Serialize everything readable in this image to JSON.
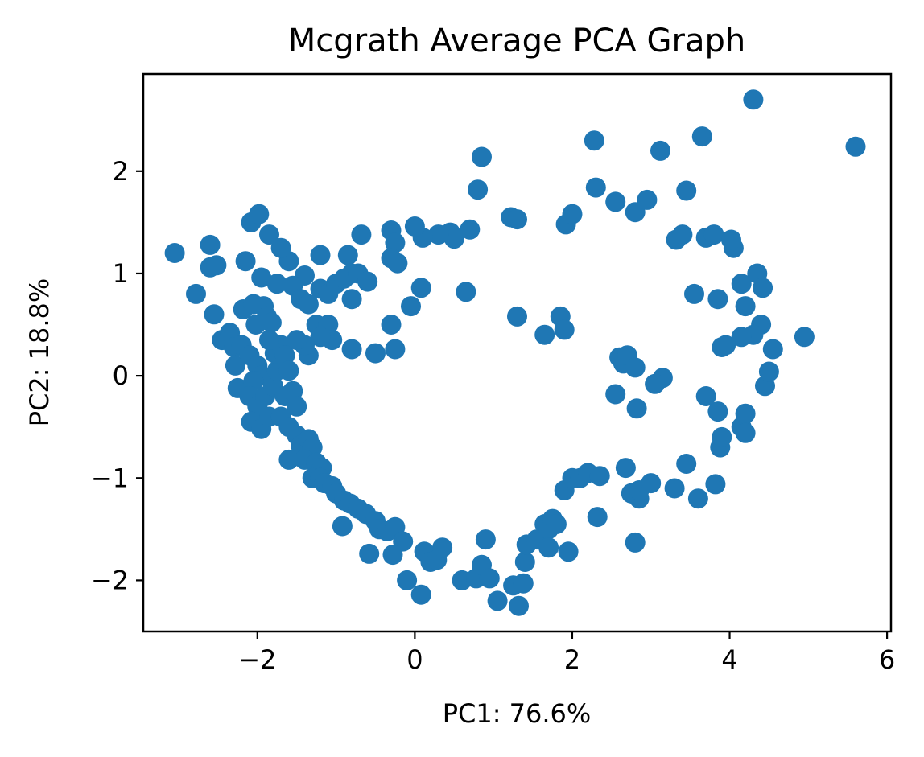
{
  "chart_data": {
    "type": "scatter",
    "title": "Mcgrath Average PCA Graph",
    "xlabel": "PC1: 76.6%",
    "ylabel": "PC2: 18.8%",
    "xlim": [
      -3.45,
      6.05
    ],
    "ylim": [
      -2.5,
      2.95
    ],
    "xticks": [
      -2,
      0,
      2,
      4,
      6
    ],
    "xtick_labels": [
      "−2",
      "0",
      "2",
      "4",
      "6"
    ],
    "yticks": [
      -2,
      -1,
      0,
      1,
      2
    ],
    "ytick_labels": [
      "−2",
      "−1",
      "0",
      "1",
      "2"
    ],
    "grid": false,
    "legend": "none",
    "marker_color": "#1f77b4",
    "points": [
      [
        -3.05,
        1.2
      ],
      [
        -2.78,
        0.8
      ],
      [
        -2.6,
        1.28
      ],
      [
        -2.6,
        1.06
      ],
      [
        -2.52,
        1.08
      ],
      [
        -2.55,
        0.6
      ],
      [
        -2.45,
        0.35
      ],
      [
        -2.35,
        0.42
      ],
      [
        -2.3,
        0.28
      ],
      [
        -2.2,
        0.3
      ],
      [
        -2.28,
        0.1
      ],
      [
        -2.25,
        -0.12
      ],
      [
        -2.18,
        0.65
      ],
      [
        -2.15,
        1.12
      ],
      [
        -2.08,
        1.5
      ],
      [
        -1.98,
        1.58
      ],
      [
        -1.95,
        0.96
      ],
      [
        -2.05,
        0.7
      ],
      [
        -1.92,
        0.68
      ],
      [
        -1.88,
        0.58
      ],
      [
        -2.02,
        0.5
      ],
      [
        -1.82,
        0.52
      ],
      [
        -2.1,
        0.2
      ],
      [
        -2.0,
        0.1
      ],
      [
        -1.95,
        0.0
      ],
      [
        -2.05,
        -0.05
      ],
      [
        -2.1,
        -0.2
      ],
      [
        -2.0,
        -0.3
      ],
      [
        -2.08,
        -0.45
      ],
      [
        -1.95,
        -0.52
      ],
      [
        -1.85,
        -0.4
      ],
      [
        -1.9,
        -0.2
      ],
      [
        -1.8,
        -0.1
      ],
      [
        -1.75,
        0.05
      ],
      [
        -1.78,
        0.22
      ],
      [
        -1.7,
        0.3
      ],
      [
        -1.85,
        0.35
      ],
      [
        -1.65,
        0.2
      ],
      [
        -1.6,
        0.05
      ],
      [
        -1.65,
        -0.2
      ],
      [
        -1.55,
        -0.15
      ],
      [
        -1.5,
        -0.3
      ],
      [
        -1.7,
        -0.4
      ],
      [
        -1.6,
        -0.5
      ],
      [
        -1.5,
        -0.58
      ],
      [
        -1.45,
        -0.68
      ],
      [
        -1.35,
        -0.62
      ],
      [
        -1.3,
        -0.7
      ],
      [
        -1.6,
        -0.82
      ],
      [
        -1.4,
        -0.82
      ],
      [
        -1.25,
        -0.85
      ],
      [
        -1.18,
        -0.9
      ],
      [
        -1.3,
        -1.0
      ],
      [
        -1.2,
        -1.0
      ],
      [
        -1.15,
        -1.05
      ],
      [
        -1.05,
        -1.08
      ],
      [
        -1.0,
        -1.15
      ],
      [
        -0.9,
        -1.22
      ],
      [
        -0.82,
        -1.25
      ],
      [
        -0.72,
        -1.3
      ],
      [
        -0.62,
        -1.35
      ],
      [
        -0.92,
        -1.47
      ],
      [
        -0.5,
        -1.42
      ],
      [
        -0.45,
        -1.5
      ],
      [
        -0.35,
        -1.52
      ],
      [
        -0.25,
        -1.48
      ],
      [
        -0.15,
        -1.62
      ],
      [
        -0.28,
        -1.75
      ],
      [
        -0.58,
        -1.74
      ],
      [
        -0.1,
        -2.0
      ],
      [
        0.08,
        -2.14
      ],
      [
        0.12,
        -1.72
      ],
      [
        0.2,
        -1.82
      ],
      [
        0.28,
        -1.8
      ],
      [
        0.35,
        -1.68
      ],
      [
        0.6,
        -2.0
      ],
      [
        0.78,
        -1.98
      ],
      [
        0.85,
        -1.85
      ],
      [
        0.9,
        -1.6
      ],
      [
        0.95,
        -1.98
      ],
      [
        1.05,
        -2.2
      ],
      [
        1.25,
        -2.05
      ],
      [
        1.32,
        -2.25
      ],
      [
        1.38,
        -2.03
      ],
      [
        1.4,
        -1.82
      ],
      [
        1.42,
        -1.65
      ],
      [
        1.55,
        -1.6
      ],
      [
        1.65,
        -1.45
      ],
      [
        1.7,
        -1.5
      ],
      [
        1.75,
        -1.4
      ],
      [
        1.8,
        -1.45
      ],
      [
        1.7,
        -1.68
      ],
      [
        1.95,
        -1.72
      ],
      [
        1.9,
        -1.12
      ],
      [
        2.0,
        -1.0
      ],
      [
        2.1,
        -1.0
      ],
      [
        2.2,
        -0.95
      ],
      [
        2.35,
        -0.98
      ],
      [
        2.32,
        -1.38
      ],
      [
        2.68,
        -0.9
      ],
      [
        2.75,
        -1.15
      ],
      [
        2.85,
        -1.2
      ],
      [
        2.85,
        -1.12
      ],
      [
        3.0,
        -1.05
      ],
      [
        2.8,
        -1.63
      ],
      [
        3.3,
        -1.1
      ],
      [
        3.45,
        -0.86
      ],
      [
        3.6,
        -1.2
      ],
      [
        3.82,
        -1.06
      ],
      [
        3.88,
        -0.7
      ],
      [
        3.9,
        -0.6
      ],
      [
        4.15,
        -0.5
      ],
      [
        4.2,
        -0.37
      ],
      [
        4.2,
        -0.56
      ],
      [
        4.45,
        -0.1
      ],
      [
        4.5,
        0.04
      ],
      [
        4.55,
        0.26
      ],
      [
        4.4,
        0.5
      ],
      [
        4.3,
        0.4
      ],
      [
        4.15,
        0.38
      ],
      [
        3.9,
        0.28
      ],
      [
        3.95,
        0.3
      ],
      [
        3.85,
        0.75
      ],
      [
        3.55,
        0.8
      ],
      [
        4.2,
        0.68
      ],
      [
        4.15,
        0.9
      ],
      [
        4.35,
        1.0
      ],
      [
        4.42,
        0.86
      ],
      [
        4.95,
        0.38
      ],
      [
        3.7,
        -0.2
      ],
      [
        3.85,
        -0.35
      ],
      [
        3.15,
        -0.02
      ],
      [
        3.05,
        -0.08
      ],
      [
        2.6,
        0.18
      ],
      [
        2.65,
        0.12
      ],
      [
        2.7,
        0.2
      ],
      [
        2.8,
        0.08
      ],
      [
        2.55,
        -0.18
      ],
      [
        2.82,
        -0.32
      ],
      [
        1.65,
        0.4
      ],
      [
        1.85,
        0.58
      ],
      [
        1.9,
        0.45
      ],
      [
        1.3,
        0.58
      ],
      [
        0.65,
        0.82
      ],
      [
        0.85,
        2.14
      ],
      [
        0.8,
        1.82
      ],
      [
        1.22,
        1.55
      ],
      [
        1.3,
        1.53
      ],
      [
        0.7,
        1.43
      ],
      [
        0.45,
        1.4
      ],
      [
        0.5,
        1.34
      ],
      [
        0.3,
        1.38
      ],
      [
        0.1,
        1.35
      ],
      [
        0.0,
        1.46
      ],
      [
        -0.3,
        1.42
      ],
      [
        -0.25,
        1.3
      ],
      [
        -0.3,
        1.15
      ],
      [
        -0.22,
        1.1
      ],
      [
        -0.68,
        1.38
      ],
      [
        -0.85,
        1.18
      ],
      [
        -0.8,
        1.0
      ],
      [
        -1.2,
        1.18
      ],
      [
        -1.4,
        0.98
      ],
      [
        -1.55,
        0.88
      ],
      [
        -1.75,
        0.9
      ],
      [
        -1.6,
        1.12
      ],
      [
        -1.7,
        1.25
      ],
      [
        -1.85,
        1.38
      ],
      [
        -1.45,
        0.75
      ],
      [
        -1.35,
        0.7
      ],
      [
        -1.2,
        0.85
      ],
      [
        -1.1,
        0.8
      ],
      [
        -1.0,
        0.9
      ],
      [
        -0.9,
        0.95
      ],
      [
        -0.8,
        0.75
      ],
      [
        -0.72,
        1.0
      ],
      [
        -0.6,
        0.92
      ],
      [
        -0.8,
        0.26
      ],
      [
        -0.5,
        0.22
      ],
      [
        -0.25,
        0.26
      ],
      [
        -0.3,
        0.5
      ],
      [
        -0.05,
        0.68
      ],
      [
        0.08,
        0.86
      ],
      [
        -1.25,
        0.5
      ],
      [
        -1.1,
        0.5
      ],
      [
        -1.05,
        0.35
      ],
      [
        -1.2,
        0.38
      ],
      [
        -1.35,
        0.2
      ],
      [
        -1.4,
        0.3
      ],
      [
        -1.5,
        0.35
      ],
      [
        1.92,
        1.48
      ],
      [
        2.0,
        1.58
      ],
      [
        2.28,
        2.3
      ],
      [
        2.3,
        1.84
      ],
      [
        2.55,
        1.7
      ],
      [
        2.8,
        1.6
      ],
      [
        2.95,
        1.72
      ],
      [
        3.12,
        2.2
      ],
      [
        3.32,
        1.33
      ],
      [
        3.4,
        1.38
      ],
      [
        3.45,
        1.81
      ],
      [
        3.65,
        2.34
      ],
      [
        3.7,
        1.35
      ],
      [
        3.8,
        1.38
      ],
      [
        4.05,
        1.25
      ],
      [
        4.02,
        1.33
      ],
      [
        4.3,
        2.7
      ],
      [
        5.6,
        2.24
      ]
    ]
  }
}
